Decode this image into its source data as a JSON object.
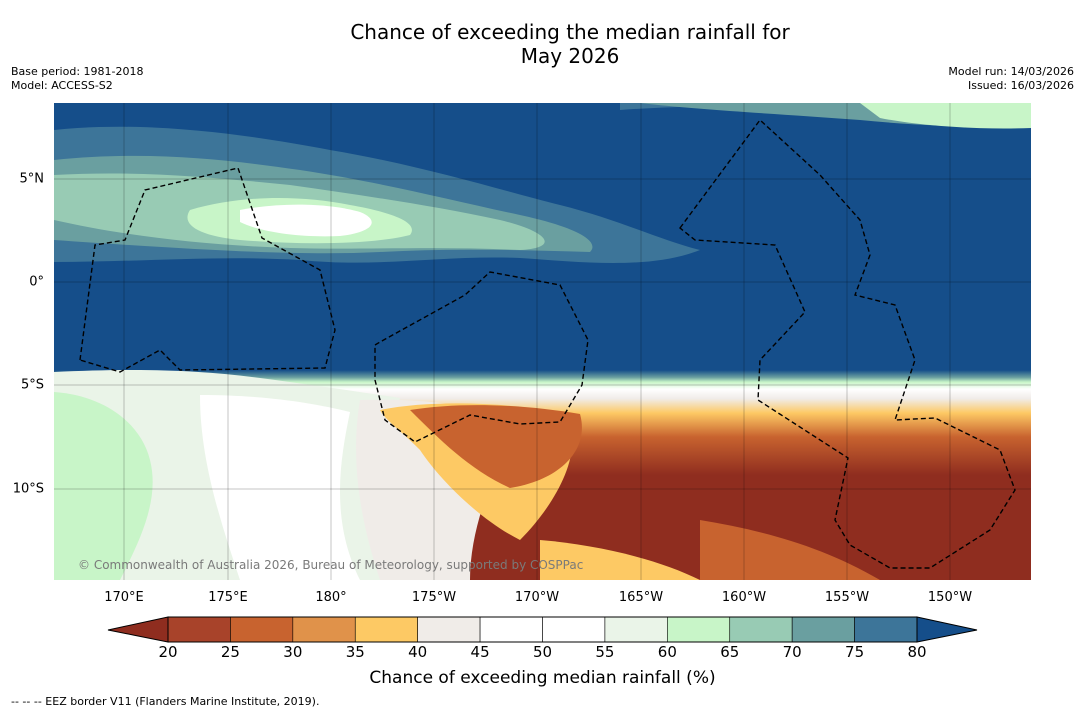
{
  "title_line1": "Chance of exceeding the median rainfall for",
  "title_line2": "May 2026",
  "meta_left": {
    "base_period": "Base period: 1981-2018",
    "model": "Model: ACCESS-S2"
  },
  "meta_right": {
    "model_run": "Model run: 14/03/2026",
    "issued": "Issued: 16/03/2026"
  },
  "longitude_labels": [
    "170°E",
    "175°E",
    "180°",
    "175°W",
    "170°W",
    "165°W",
    "160°W",
    "155°W",
    "150°W"
  ],
  "latitude_labels": [
    "5°N",
    "0°",
    "5°S",
    "10°S"
  ],
  "colorbar": {
    "tick_labels": [
      "20",
      "25",
      "30",
      "35",
      "40",
      "45",
      "50",
      "55",
      "60",
      "65",
      "70",
      "75",
      "80"
    ],
    "under_color": "#8f2d1f",
    "over_color": "#154e8a",
    "bin_colors": [
      "#a8432a",
      "#c8632f",
      "#e0924a",
      "#fdc964",
      "#f0ece8",
      "#ffffff",
      "#ffffff",
      "#eaf4e8",
      "#c8f5c8",
      "#98cbb4",
      "#6a9fa0",
      "#3d7599"
    ],
    "title": "Chance of exceeding median rainfall (%)"
  },
  "copyright": "© Commonwealth of Australia 2026, Bureau of Meteorology, supported by COSPPac",
  "footnote": "-- -- -- EEZ border V11 (Flanders Marine Institute, 2019)."
}
